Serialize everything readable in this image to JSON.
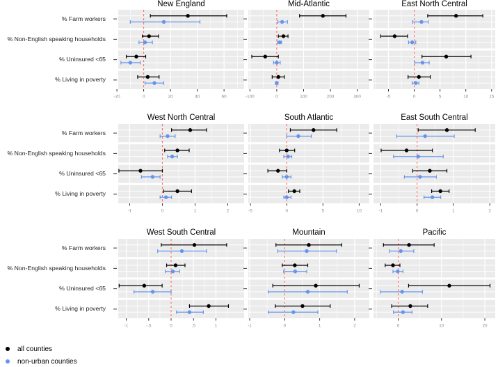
{
  "figure": {
    "background": "#ffffff",
    "panel_background": "#ebebeb",
    "grid_color": "#ffffff",
    "zero_line_color": "#f4756b",
    "axis_tick_color": "#333333",
    "tick_label_color": "#8c8c8c"
  },
  "chart_data": {
    "type": "scatter",
    "subtype": "faceted forest plot: point estimate with confidence interval, dashed reference line at 0",
    "categories": [
      "% Farm workers",
      "% Non-English speaking households",
      "% Uninsured <65",
      "% Living in poverty"
    ],
    "series": [
      {
        "name": "all counties",
        "color": "#000000"
      },
      {
        "name": "non-urban counties",
        "color": "#6495ed"
      }
    ],
    "zero_reference_line": 0,
    "legend_position": "bottom-left",
    "grid": true,
    "value_format": "[ci_low, estimate, ci_high] per category, category order as in categories[]",
    "panels": [
      {
        "title": "New England",
        "xlim": [
          -19,
          75
        ],
        "ticks": [
          -20,
          0,
          20,
          40,
          60
        ],
        "tick_labels": [
          "-20",
          "0",
          "20",
          "40",
          "60"
        ],
        "all": [
          [
            5,
            33,
            62
          ],
          [
            -1,
            4,
            11
          ],
          [
            -13,
            -5.5,
            1.5
          ],
          [
            -4.5,
            3,
            11.5
          ]
        ],
        "non_urban": [
          [
            -10,
            15,
            42
          ],
          [
            -3.5,
            1,
            6.5
          ],
          [
            -17,
            -10,
            -2.5
          ],
          [
            1,
            8,
            15
          ]
        ]
      },
      {
        "title": "Mid-Atlantic",
        "xlim": [
          -106,
          345
        ],
        "ticks": [
          -100,
          0,
          100,
          200,
          300
        ],
        "tick_labels": [
          "-100",
          "0",
          "100",
          "200",
          "300"
        ],
        "all": [
          [
            85,
            172,
            258
          ],
          [
            6,
            25,
            42
          ],
          [
            -93,
            -43,
            6
          ],
          [
            -17,
            6,
            28
          ]
        ],
        "non_urban": [
          [
            4,
            20,
            40
          ],
          [
            3,
            11,
            18
          ],
          [
            -12,
            0,
            13
          ],
          [
            -5,
            0,
            5
          ]
        ]
      },
      {
        "title": "East North Central",
        "xlim": [
          -7.9,
          15.7
        ],
        "ticks": [
          -5,
          0,
          5,
          10,
          15
        ],
        "tick_labels": [
          "-5",
          "0",
          "5",
          "10",
          "15"
        ],
        "all": [
          [
            2.6,
            8.1,
            13.3
          ],
          [
            -6.5,
            -3.8,
            -1.3
          ],
          [
            1.5,
            6.2,
            11
          ],
          [
            -1.2,
            0.9,
            3.1
          ]
        ],
        "non_urban": [
          [
            -0.3,
            1.4,
            2.7
          ],
          [
            -1.1,
            -0.4,
            0.3
          ],
          [
            0.1,
            1.6,
            2.9
          ],
          [
            -0.4,
            0.3,
            0.9
          ]
        ]
      },
      {
        "title": "West North Central",
        "xlim": [
          -1.35,
          2.5
        ],
        "ticks": [
          -1,
          0,
          1,
          2
        ],
        "tick_labels": [
          "-1",
          "0",
          "1",
          "2"
        ],
        "all": [
          [
            0.28,
            0.85,
            1.35
          ],
          [
            0.07,
            0.46,
            0.82
          ],
          [
            -1.33,
            -0.67,
            0.0
          ],
          [
            0.04,
            0.46,
            0.89
          ]
        ],
        "non_urban": [
          [
            -0.07,
            0.16,
            0.39
          ],
          [
            0.16,
            0.3,
            0.46
          ],
          [
            -0.64,
            -0.3,
            -0.07
          ],
          [
            -0.07,
            0.11,
            0.28
          ]
        ]
      },
      {
        "title": "South Atlantic",
        "xlim": [
          -5.3,
          11.4
        ],
        "ticks": [
          -5,
          0,
          5,
          10
        ],
        "tick_labels": [
          "-5",
          "0",
          "5",
          "10"
        ],
        "all": [
          [
            0.5,
            3.7,
            6.9
          ],
          [
            -1.0,
            0.0,
            1.1
          ],
          [
            -2.6,
            -1.2,
            0.0
          ],
          [
            0.25,
            1.05,
            1.8
          ]
        ],
        "non_urban": [
          [
            0.0,
            1.6,
            3.4
          ],
          [
            -0.4,
            0.2,
            0.7
          ],
          [
            -0.6,
            0.0,
            0.6
          ],
          [
            -0.4,
            0.0,
            0.6
          ]
        ]
      },
      {
        "title": "East South Central",
        "xlim": [
          -1.2,
          2.15
        ],
        "ticks": [
          -1,
          0,
          1,
          2
        ],
        "tick_labels": [
          "-1",
          "0",
          "1",
          "2"
        ],
        "all": [
          [
            0.03,
            0.82,
            1.6
          ],
          [
            -0.99,
            -0.29,
            0.42
          ],
          [
            -0.12,
            0.35,
            0.82
          ],
          [
            0.4,
            0.64,
            0.88
          ]
        ],
        "non_urban": [
          [
            -0.56,
            0.22,
            1.02
          ],
          [
            -0.65,
            0.03,
            0.72
          ],
          [
            -0.35,
            0.08,
            0.53
          ],
          [
            0.19,
            0.42,
            0.65
          ]
        ]
      },
      {
        "title": "West South Central",
        "xlim": [
          -1.18,
          1.63
        ],
        "ticks": [
          -1,
          -0.5,
          0,
          0.5,
          1
        ],
        "tick_labels": [
          "-1",
          "-.5",
          "0",
          ".5",
          "1"
        ],
        "all": [
          [
            -0.22,
            0.52,
            1.24
          ],
          [
            -0.1,
            0.1,
            0.31
          ],
          [
            -1.16,
            -0.6,
            -0.2
          ],
          [
            0.41,
            0.84,
            1.28
          ]
        ],
        "non_urban": [
          [
            -0.3,
            0.24,
            0.79
          ],
          [
            -0.13,
            0.04,
            0.19
          ],
          [
            -0.83,
            -0.41,
            0.0
          ],
          [
            0.12,
            0.41,
            0.72
          ]
        ]
      },
      {
        "title": "Mountain",
        "xlim": [
          -1.04,
          2.42
        ],
        "ticks": [
          -1,
          0,
          1,
          2
        ],
        "tick_labels": [
          "-1",
          "0",
          "1",
          "2"
        ],
        "all": [
          [
            -0.25,
            0.69,
            1.63
          ],
          [
            -0.07,
            0.29,
            0.66
          ],
          [
            -0.34,
            0.89,
            2.13
          ],
          [
            -0.27,
            0.51,
            1.3
          ]
        ],
        "non_urban": [
          [
            -0.2,
            0.63,
            1.48
          ],
          [
            -0.03,
            0.3,
            0.63
          ],
          [
            -0.47,
            0.66,
            1.79
          ],
          [
            -0.47,
            0.25,
            0.95
          ]
        ]
      },
      {
        "title": "Pacific",
        "xlim": [
          -5.7,
          22.4
        ],
        "ticks": [
          0,
          10,
          20
        ],
        "tick_labels": [
          "0",
          "10",
          "20"
        ],
        "all": [
          [
            -3.4,
            2.5,
            8.3
          ],
          [
            -3.0,
            -1.2,
            0.4
          ],
          [
            2.4,
            11.8,
            21.2
          ],
          [
            -1.5,
            2.8,
            6.8
          ]
        ],
        "non_urban": [
          [
            -2.0,
            0.6,
            3.6
          ],
          [
            -1.2,
            -0.1,
            1.1
          ],
          [
            -4.1,
            0.9,
            5.6
          ],
          [
            -1.1,
            1.1,
            3.2
          ]
        ]
      }
    ]
  }
}
